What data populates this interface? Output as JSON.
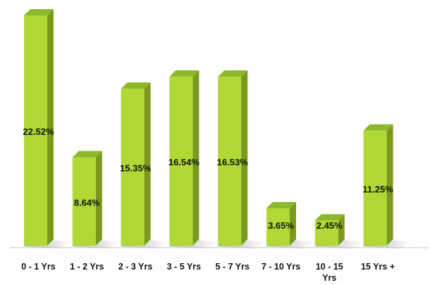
{
  "chart_data": {
    "type": "bar",
    "categories": [
      "0 - 1 Yrs",
      "1 - 2 Yrs",
      "2 - 3 Yrs",
      "3 - 5 Yrs",
      "5 - 7 Yrs",
      "7 - 10 Yrs",
      "10 - 15 Yrs",
      "15 Yrs +"
    ],
    "category_lines": [
      [
        "0 - 1 Yrs"
      ],
      [
        "1 - 2 Yrs"
      ],
      [
        "2 - 3 Yrs"
      ],
      [
        "3 - 5 Yrs"
      ],
      [
        "5 - 7 Yrs"
      ],
      [
        "7 - 10 Yrs"
      ],
      [
        "10 - 15",
        "Yrs"
      ],
      [
        "15 Yrs +"
      ]
    ],
    "values": [
      22.52,
      8.64,
      15.35,
      16.54,
      16.53,
      3.65,
      2.45,
      11.25
    ],
    "value_labels": [
      "22.52%",
      "8.64%",
      "15.35%",
      "16.54%",
      "16.53%",
      "3.65%",
      "2.45%",
      "11.25%"
    ],
    "ylim": [
      0,
      22.52
    ],
    "grid": false,
    "legend": "none",
    "style": "3d-bar",
    "colors": {
      "bar_front": "#b1d935",
      "bar_side": "#799a1c",
      "bar_top": "#8db82b",
      "shadow": "#8a8a8a",
      "baseline": "#cfcfcf",
      "text": "#111111"
    }
  }
}
